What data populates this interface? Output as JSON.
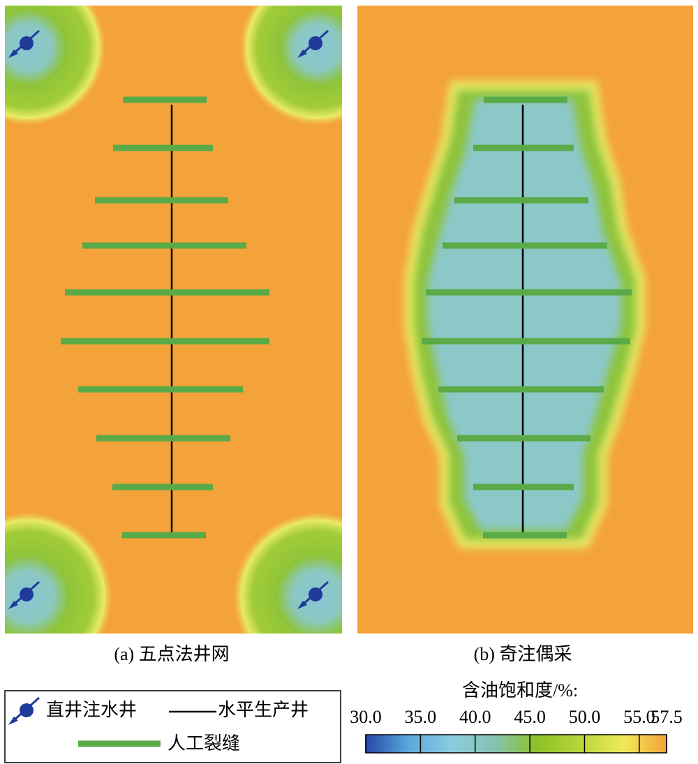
{
  "panels": [
    {
      "caption": "(a) 五点法井网"
    },
    {
      "caption": "(b) 奇注偶采"
    }
  ],
  "legend": {
    "items": [
      "直井注水井",
      "水平生产井",
      "人工裂缝"
    ]
  },
  "colorbar": {
    "title": "含油饱和度/%:",
    "range": [
      30,
      57.5
    ],
    "ticks": [
      {
        "value": 30,
        "label": "30.0"
      },
      {
        "value": 35,
        "label": "35.0"
      },
      {
        "value": 40,
        "label": "40.0"
      },
      {
        "value": 45,
        "label": "45.0"
      },
      {
        "value": 50,
        "label": "50.0"
      },
      {
        "value": 55,
        "label": "55.0"
      },
      57.5
    ],
    "colors": [
      "#2747a8",
      "#5aa8dc",
      "#8ccbe0",
      "#86c3b0",
      "#8cc226",
      "#b8d63a",
      "#f0ea5a",
      "#f4a23a"
    ]
  }
}
